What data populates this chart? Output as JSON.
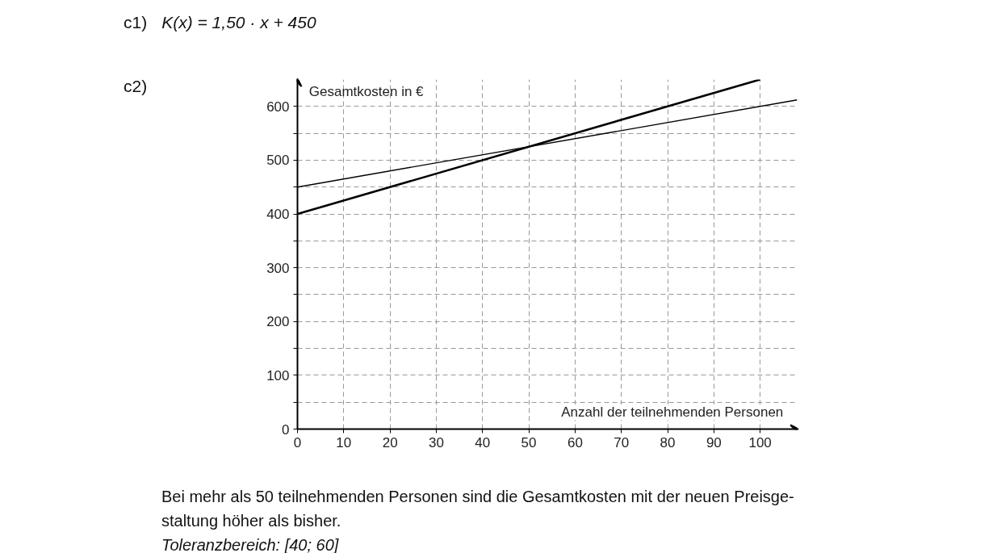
{
  "chart_data": {
    "type": "line",
    "xlabel": "Anzahl der teilnehmenden Personen",
    "ylabel": "Gesamtkosten in €",
    "xlim": [
      0,
      108
    ],
    "ylim": [
      0,
      650
    ],
    "xticks": [
      0,
      10,
      20,
      30,
      40,
      50,
      60,
      70,
      80,
      90,
      100
    ],
    "yticks": [
      0,
      {
        "value": 50,
        "label": null
      },
      100,
      {
        "value": 150,
        "label": null
      },
      200,
      {
        "value": 250,
        "label": null
      },
      300,
      {
        "value": 350,
        "label": null
      },
      400,
      {
        "value": 450,
        "label": null
      },
      500,
      {
        "value": 550,
        "label": null
      },
      600
    ],
    "series": [
      {
        "color": "#000000",
        "x": [
          0,
          100
        ],
        "values": [
          400,
          650
        ]
      },
      {
        "color": "#000000",
        "x": [
          0,
          108
        ],
        "values": [
          450,
          612
        ]
      }
    ],
    "grid": true,
    "line_style": "solid",
    "marker": "none",
    "annotations": [
      "c1)",
      "K(x) = 1,50 · x + 450",
      "c2)",
      "Bei mehr als 50 teilnehmenden Personen sind die Gesamtkosten mit der neuen Preisge-",
      "staltung höher als bisher.",
      "Toleranzbereich: [40; 60]"
    ]
  }
}
